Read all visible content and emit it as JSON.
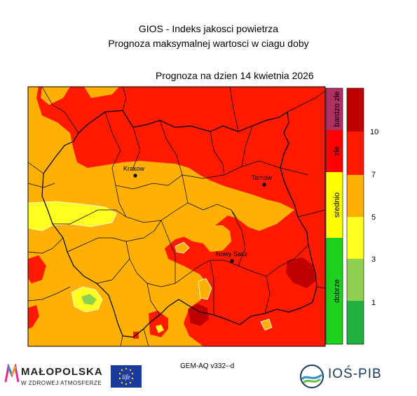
{
  "header": {
    "title_line1": "GIOS - Indeks jakosci powietrza",
    "title_line2": "Prognoza maksymalnej wartosci w ciagu doby",
    "forecast_date": "Prognoza na dzien  14 kwietnia 2026"
  },
  "map": {
    "cities": [
      {
        "name": "Krakow"
      },
      {
        "name": "Tarnow"
      },
      {
        "name": "Nowy Sacz"
      }
    ],
    "colors": {
      "dobrze": "#1fd11f",
      "srednio": "#ffff00",
      "zle": "#ff0000",
      "bardzo_zle": "#b03060",
      "boundary": "#000000"
    }
  },
  "legend": {
    "category_labels": [
      "bardzo złe",
      "złe",
      "srednio",
      "dobrze"
    ],
    "scale_ticks": [
      "10",
      "7",
      "5",
      "3",
      "1"
    ],
    "scale_colors": [
      "#c00000",
      "#ff1a00",
      "#ffb000",
      "#ffff20",
      "#90d050",
      "#20b040"
    ]
  },
  "footer": {
    "model": "GEM-AQ v332--d",
    "malopolska_name": "MAŁOPOLSKA",
    "malopolska_sub": "W ZDROWEJ ATMOSFERZE",
    "eu_mark": "life",
    "ios_name": "IOŚ-PIB"
  }
}
